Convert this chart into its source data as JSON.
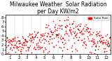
{
  "title": "Milwaukee Weather  Solar Radiation\nper Day KW/m2",
  "title_fontsize": 5.5,
  "background_color": "#ffffff",
  "plot_bg_color": "#ffffff",
  "grid_color": "#aaaaaa",
  "ylim": [
    0,
    8.5
  ],
  "xlim": [
    0,
    365
  ],
  "ylabel_fontsize": 4,
  "xlabel_fontsize": 4,
  "yticks": [
    0,
    1,
    2,
    3,
    4,
    5,
    6,
    7,
    8
  ],
  "xtick_positions": [
    15,
    46,
    74,
    105,
    135,
    166,
    196,
    227,
    258,
    288,
    319,
    349
  ],
  "xtick_labels": [
    "1",
    "2",
    "3",
    "4",
    "5",
    "6",
    "7",
    "8",
    "9",
    "10",
    "11",
    "12"
  ],
  "vline_positions": [
    31,
    59,
    90,
    120,
    151,
    181,
    212,
    243,
    273,
    304,
    334
  ],
  "legend_label": "Solar Rad.",
  "legend_color": "#ff0000",
  "dot_color_primary": "#ff0000",
  "dot_color_secondary": "#000000",
  "dot_size": 1.2
}
